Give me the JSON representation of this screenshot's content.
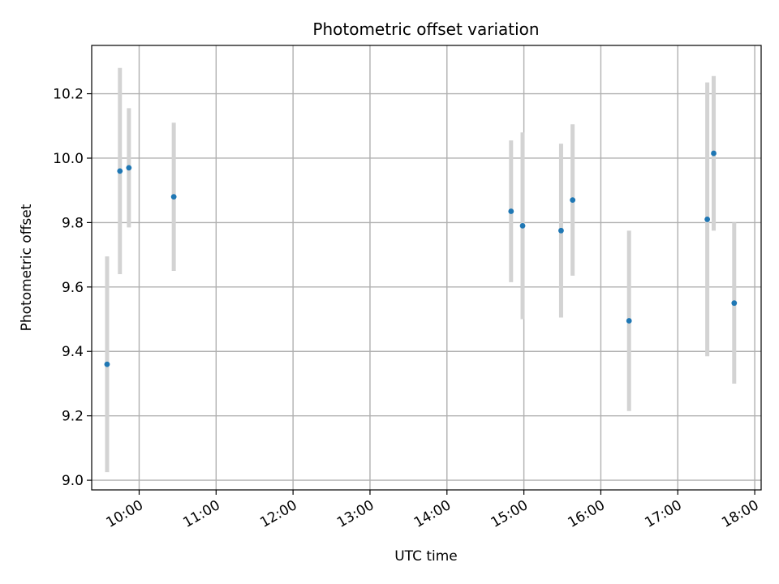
{
  "chart_data": {
    "type": "scatter",
    "title": "Photometric offset variation",
    "xlabel": "UTC time",
    "ylabel": "Photometric offset",
    "x_axis_kind": "time",
    "xlim": [
      "09:23",
      "18:05"
    ],
    "ylim": [
      8.97,
      10.35
    ],
    "grid": true,
    "marker_color": "#1f77b4",
    "errorbar_color": "#d3d3d3",
    "x_ticks": [
      "10:00",
      "11:00",
      "12:00",
      "13:00",
      "14:00",
      "15:00",
      "16:00",
      "17:00",
      "18:00"
    ],
    "y_ticks": [
      "9.0",
      "9.2",
      "9.4",
      "9.6",
      "9.8",
      "10.0",
      "10.2"
    ],
    "series": [
      {
        "points": [
          {
            "x": "09:35",
            "y": 9.36,
            "err": 0.335
          },
          {
            "x": "09:45",
            "y": 9.96,
            "err": 0.32
          },
          {
            "x": "09:52",
            "y": 9.97,
            "err": 0.185
          },
          {
            "x": "10:27",
            "y": 9.88,
            "err": 0.23
          },
          {
            "x": "14:50",
            "y": 9.835,
            "err": 0.22
          },
          {
            "x": "14:59",
            "y": 9.79,
            "err": 0.29
          },
          {
            "x": "15:29",
            "y": 9.775,
            "err": 0.27
          },
          {
            "x": "15:38",
            "y": 9.87,
            "err": 0.235
          },
          {
            "x": "16:22",
            "y": 9.495,
            "err": 0.28
          },
          {
            "x": "17:23",
            "y": 9.81,
            "err": 0.425
          },
          {
            "x": "17:28",
            "y": 10.015,
            "err": 0.24
          },
          {
            "x": "17:44",
            "y": 9.55,
            "err": 0.25
          }
        ]
      }
    ]
  }
}
